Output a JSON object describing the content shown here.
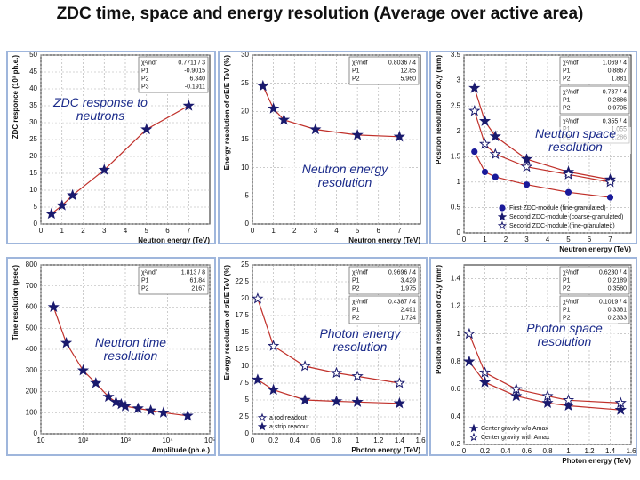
{
  "title": "ZDC time, space and energy resolution (Average over active area)",
  "chart_data": [
    {
      "type": "line",
      "x_label": "Neutron energy (TeV)",
      "y_label": "ZDC responce (10³ ph.e.)",
      "annotation": "ZDC response to neutrons",
      "x": [
        0.5,
        1,
        1.5,
        3,
        5,
        7
      ],
      "series": [
        {
          "color": "#1a1a6e",
          "marker": "star",
          "values": [
            3,
            5.5,
            8.5,
            16,
            28,
            35
          ]
        }
      ],
      "xlim": [
        0,
        8
      ],
      "xticks": [
        0,
        1,
        2,
        3,
        4,
        5,
        6,
        7
      ],
      "ylim": [
        0,
        50
      ],
      "yticks": [
        0,
        5,
        10,
        15,
        20,
        25,
        30,
        35,
        40,
        45,
        50
      ],
      "grid": true,
      "fit": true,
      "fit_color": "#c0302a",
      "stats": [
        [
          [
            "χ²/ndf",
            "0.7711 / 3"
          ],
          [
            "P1",
            "-0.9015"
          ],
          [
            "P2",
            "6.340"
          ],
          [
            "P3",
            "-0.1911"
          ]
        ]
      ]
    },
    {
      "type": "line",
      "x_label": "Neutron energy (TeV)",
      "y_label": "Energy resolution of σE/E TeV (%)",
      "annotation": "Neutron energy resolution",
      "x": [
        0.5,
        1,
        1.5,
        3,
        5,
        7
      ],
      "series": [
        {
          "color": "#1a1a6e",
          "marker": "star",
          "values": [
            24.5,
            20.5,
            18.5,
            16.8,
            15.8,
            15.5
          ]
        }
      ],
      "xlim": [
        0,
        8
      ],
      "xticks": [
        0,
        1,
        2,
        3,
        4,
        5,
        6,
        7
      ],
      "ylim": [
        0,
        30
      ],
      "yticks": [
        0,
        5,
        10,
        15,
        20,
        25,
        30
      ],
      "grid": true,
      "fit": true,
      "fit_color": "#c0302a",
      "stats": [
        [
          [
            "χ²/ndf",
            "0.8036 / 4"
          ],
          [
            "P1",
            "12.85"
          ],
          [
            "P2",
            "5.960"
          ]
        ]
      ]
    },
    {
      "type": "line",
      "x_label": "Neutron energy (TeV)",
      "y_label": "Position resolution of σx,y (mm)",
      "annotation": "Neutron space resolution",
      "x": [
        0.5,
        1,
        1.5,
        3,
        5,
        7
      ],
      "series": [
        {
          "name": "First ZDC-module (fine-granulated)",
          "color": "#1a1a9a",
          "marker": "circle",
          "values": [
            1.6,
            1.2,
            1.1,
            0.95,
            0.8,
            0.7
          ]
        },
        {
          "name": "Second ZDC-module (coarse-granulated)",
          "color": "#1a1a6e",
          "marker": "star",
          "values": [
            2.85,
            2.2,
            1.9,
            1.45,
            1.2,
            1.05
          ]
        },
        {
          "name": "Second ZDC-module (fine-granulated)",
          "color": "#1a1a6e",
          "marker": "open-star",
          "values": [
            2.4,
            1.75,
            1.55,
            1.3,
            1.15,
            1.0
          ]
        }
      ],
      "xlim": [
        0,
        8
      ],
      "xticks": [
        0,
        1,
        2,
        3,
        4,
        5,
        6,
        7
      ],
      "ylim": [
        0,
        3.5
      ],
      "yticks": [
        0,
        0.5,
        1,
        1.5,
        2,
        2.5,
        3,
        3.5
      ],
      "grid": true,
      "fit": true,
      "fit_color": "#c0302a",
      "legend": "lower right",
      "stats": [
        [
          [
            "χ²/ndf",
            "1.069 / 4"
          ],
          [
            "P1",
            "0.8867"
          ],
          [
            "P2",
            "1.881"
          ]
        ],
        [
          [
            "χ²/ndf",
            "0.737 / 4"
          ],
          [
            "P1",
            "0.2886"
          ],
          [
            "P2",
            "0.9705"
          ]
        ],
        [
          [
            "χ²/ndf",
            "0.355 / 4"
          ],
          [
            "P1",
            "1.055"
          ],
          [
            "P2",
            "1.286"
          ]
        ]
      ]
    },
    {
      "type": "line",
      "x_label": "Amplitude (ph.e.)",
      "y_label": "Time resolution (psec)",
      "annotation": "Neutron time resolution",
      "xscale": "log",
      "x": [
        20,
        40,
        100,
        200,
        400,
        600,
        800,
        1000,
        2000,
        4000,
        8000,
        30000
      ],
      "series": [
        {
          "color": "#1a1a6e",
          "marker": "star",
          "values": [
            600,
            430,
            300,
            240,
            175,
            150,
            140,
            130,
            120,
            110,
            100,
            85
          ]
        }
      ],
      "xlim": [
        10,
        100000
      ],
      "xticks": [
        10,
        {
          "value": 100,
          "label": "10²"
        },
        {
          "value": 1000,
          "label": "10³"
        },
        {
          "value": 10000,
          "label": "10⁴"
        },
        {
          "value": 100000,
          "label": "10⁵"
        }
      ],
      "ylim": [
        0,
        800
      ],
      "yticks": [
        0,
        100,
        200,
        300,
        400,
        500,
        600,
        700,
        800
      ],
      "grid": true,
      "fit": true,
      "fit_color": "#c0302a",
      "stats": [
        [
          [
            "χ²/ndf",
            "1.813 / 8"
          ],
          [
            "P1",
            "61.84"
          ],
          [
            "P2",
            "2167"
          ]
        ]
      ]
    },
    {
      "type": "line",
      "x_label": "Photon energy (TeV)",
      "y_label": "Energy resolution of σE/E TeV (%)",
      "annotation": "Photon energy resolution",
      "x": [
        0.05,
        0.2,
        0.5,
        0.8,
        1,
        1.4
      ],
      "series": [
        {
          "name": "a rod readout",
          "color": "#1a1a6e",
          "marker": "open-star",
          "values": [
            20,
            13,
            10,
            9,
            8.5,
            7.5
          ]
        },
        {
          "name": "a strip readout",
          "color": "#1a1a6e",
          "marker": "star",
          "values": [
            8,
            6.5,
            5,
            4.8,
            4.7,
            4.5
          ]
        }
      ],
      "xlim": [
        0,
        1.6
      ],
      "xticks": [
        0,
        0.2,
        0.4,
        0.6,
        0.8,
        1,
        1.2,
        1.4,
        1.6
      ],
      "ylim": [
        0,
        25
      ],
      "yticks": [
        0,
        2.5,
        5,
        7.5,
        10,
        12.5,
        15,
        17.5,
        20,
        22.5,
        25
      ],
      "grid": true,
      "fit": true,
      "fit_color": "#c0302a",
      "legend": "lower left",
      "stats": [
        [
          [
            "χ²/ndf",
            "0.9696 / 4"
          ],
          [
            "P1",
            "3.429"
          ],
          [
            "P2",
            "1.975"
          ]
        ],
        [
          [
            "χ²/ndf",
            "0.4387 / 4"
          ],
          [
            "P1",
            "2.491"
          ],
          [
            "P2",
            "1.724"
          ]
        ]
      ]
    },
    {
      "type": "line",
      "x_label": "Photon energy (TeV)",
      "y_label": "Position resolution of σx,y (mm)",
      "annotation": "Photon space resolution",
      "x": [
        0.05,
        0.2,
        0.5,
        0.8,
        1,
        1.5
      ],
      "series": [
        {
          "name": "Center gravity w/o Amax",
          "color": "#1a1a6e",
          "marker": "star",
          "values": [
            0.8,
            0.65,
            0.55,
            0.5,
            0.48,
            0.45
          ]
        },
        {
          "name": "Center gravity with Amax",
          "color": "#1a1a6e",
          "marker": "open-star",
          "values": [
            1.0,
            0.72,
            0.6,
            0.55,
            0.52,
            0.5
          ]
        }
      ],
      "xlim": [
        0,
        1.6
      ],
      "xticks": [
        0,
        0.2,
        0.4,
        0.6,
        0.8,
        1,
        1.2,
        1.4,
        1.6
      ],
      "ylim": [
        0.2,
        1.5
      ],
      "yticks": [
        0.2,
        0.4,
        0.6,
        0.8,
        1,
        1.2,
        1.4
      ],
      "grid": true,
      "fit": true,
      "fit_color": "#c0302a",
      "legend": "lower left",
      "stats": [
        [
          [
            "χ²/ndf",
            "0.6230 / 4"
          ],
          [
            "P1",
            "0.2189"
          ],
          [
            "P2",
            "0.3580"
          ]
        ],
        [
          [
            "χ²/ndf",
            "0.1019 / 4"
          ],
          [
            "P1",
            "0.3381"
          ],
          [
            "P2",
            "0.2333"
          ]
        ]
      ]
    }
  ]
}
